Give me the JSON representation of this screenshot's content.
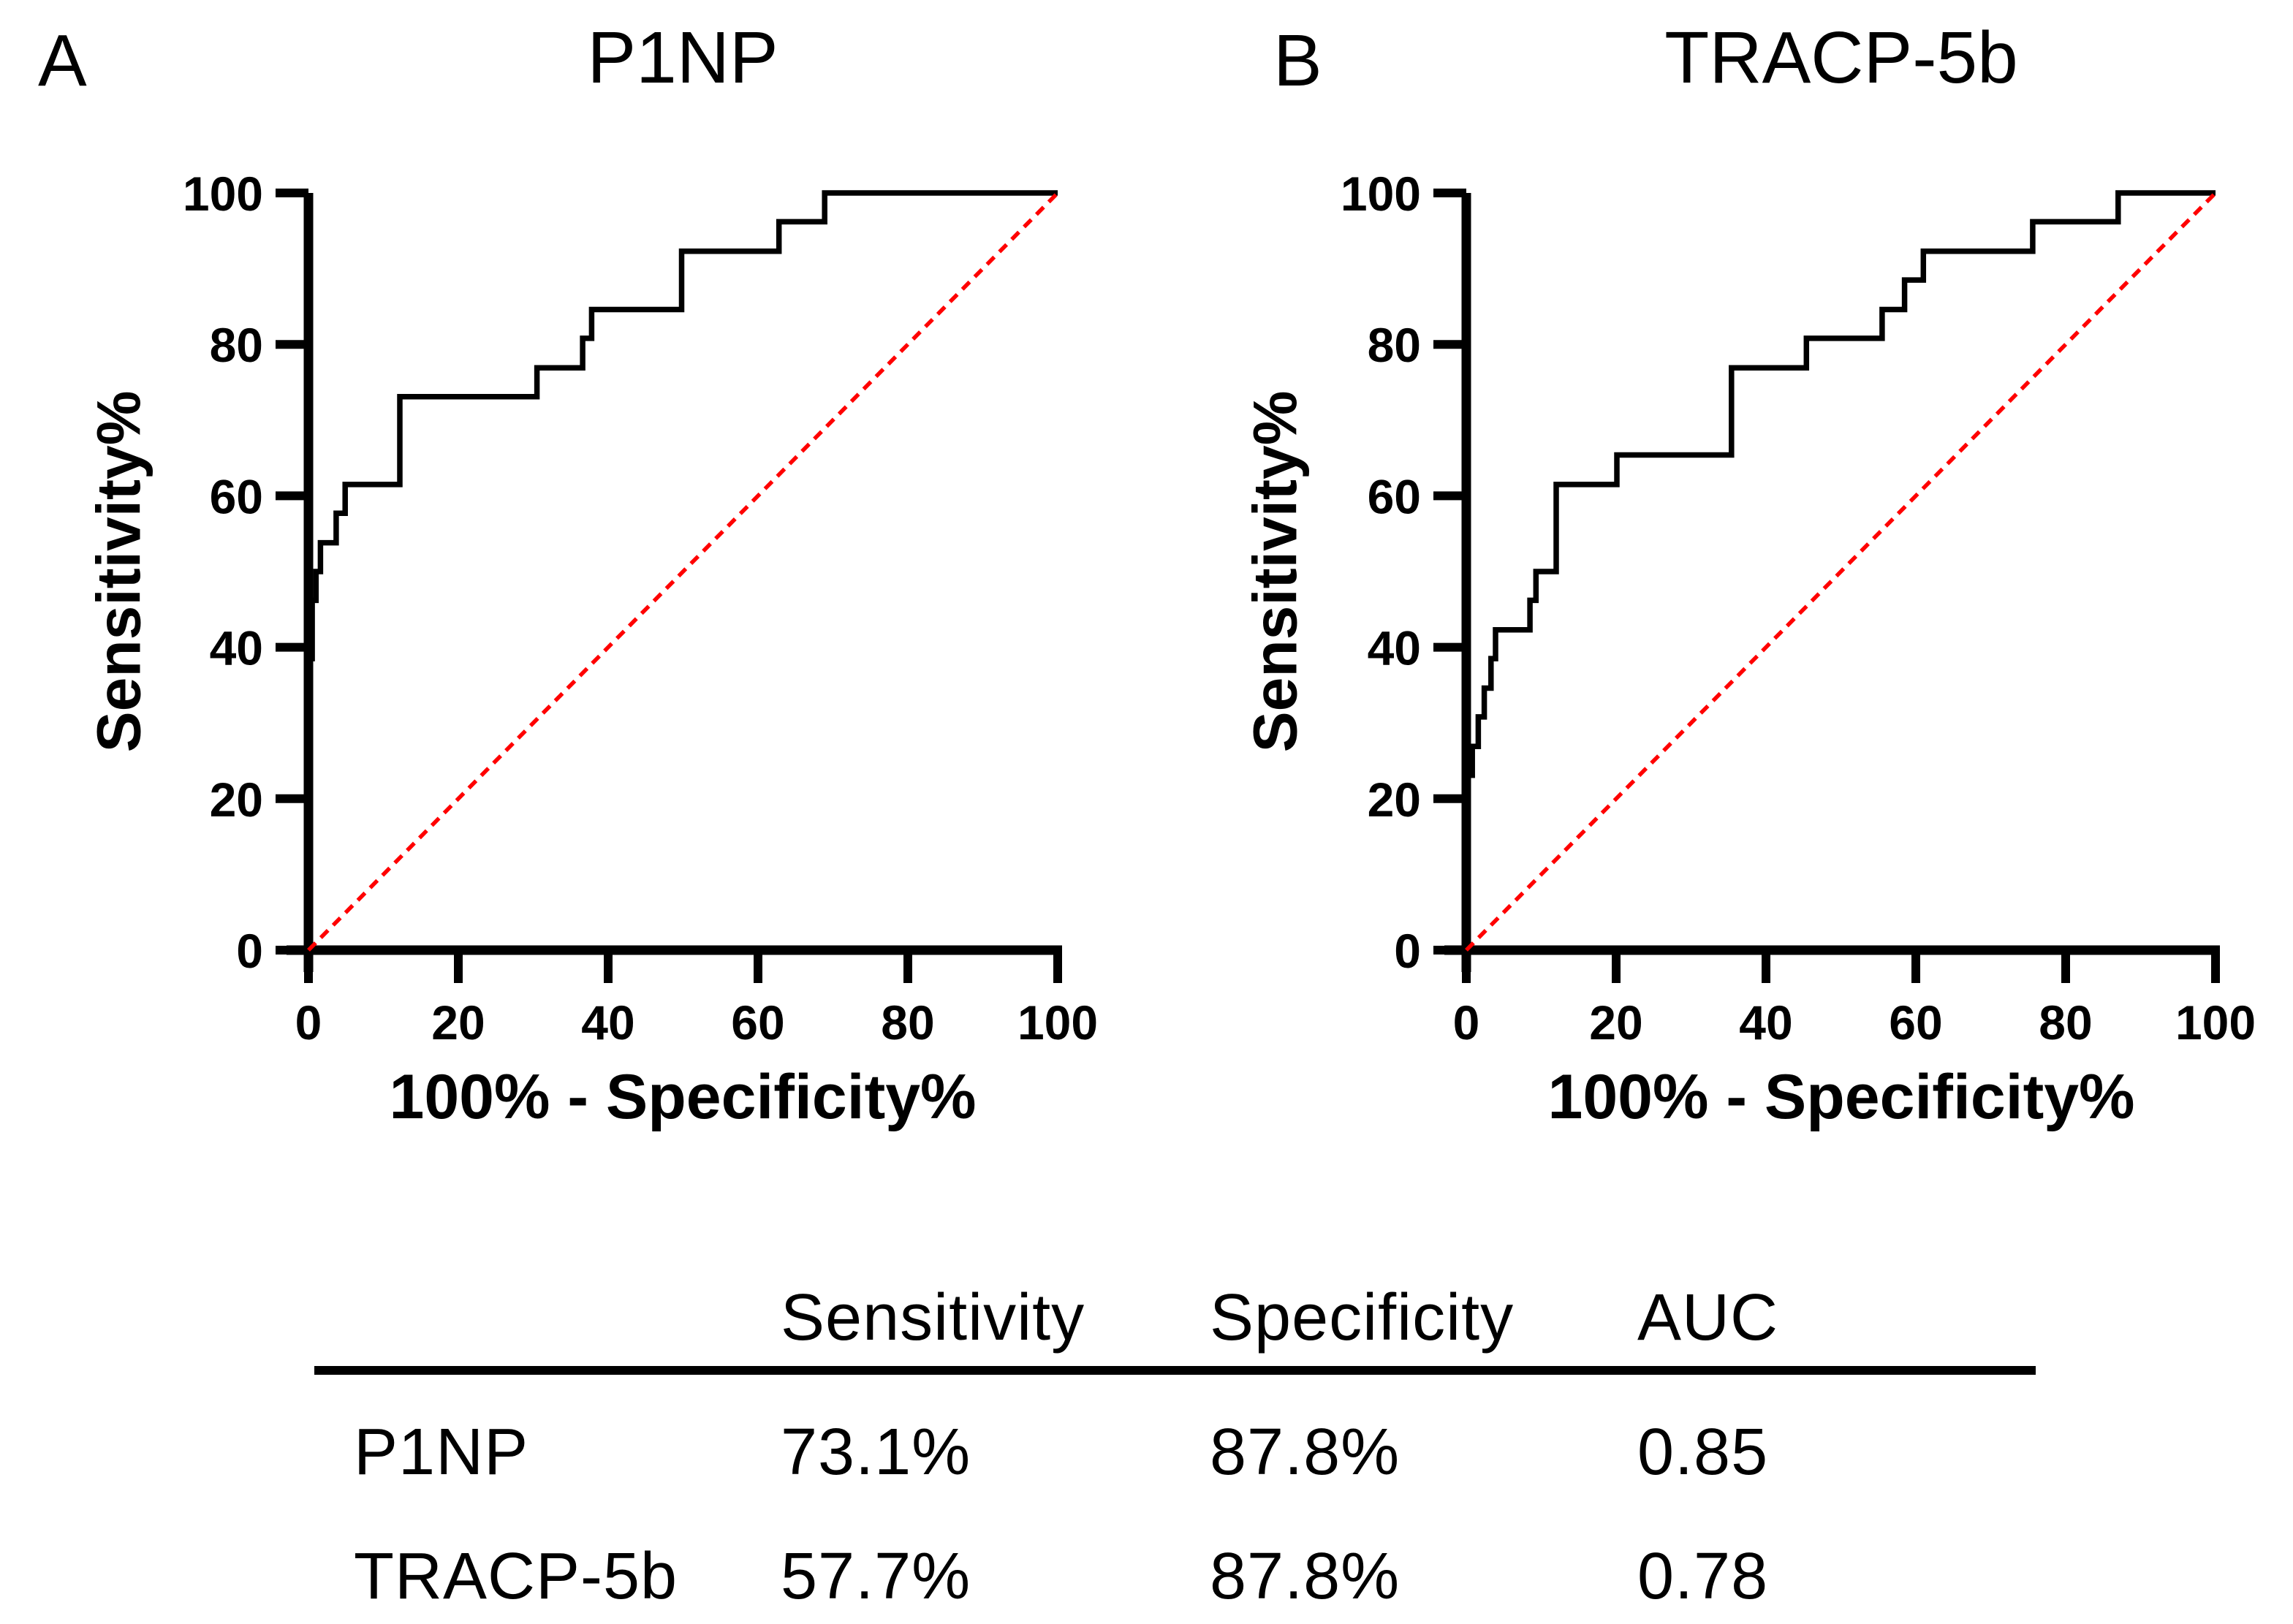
{
  "figure": {
    "panels": [
      {
        "letter": "A",
        "title": "P1NP"
      },
      {
        "letter": "B",
        "title": "TRACP-5b"
      }
    ],
    "background": "#FFFFFF"
  },
  "colors": {
    "curve": "#000000",
    "diagonal": "#FF0000",
    "text": "#000000",
    "table_rule": "#000000"
  },
  "chart_data": [
    {
      "type": "line",
      "panel": "A",
      "title": "P1NP",
      "xlabel": "100% - Specificity%",
      "ylabel": "Sensitivity%",
      "xlim": [
        0,
        100
      ],
      "ylim": [
        0,
        100
      ],
      "xticks": [
        0,
        20,
        40,
        60,
        80,
        100
      ],
      "yticks": [
        0,
        20,
        40,
        60,
        80,
        100
      ],
      "grid": false,
      "legend": "none",
      "series": [
        {
          "name": "ROC curve (P1NP)",
          "color": "#000000",
          "dashed": false,
          "points": [
            [
              0,
              0
            ],
            [
              0,
              38.5
            ],
            [
              0.5,
              38.5
            ],
            [
              0.5,
              46.2
            ],
            [
              1.0,
              46.2
            ],
            [
              1.0,
              50
            ],
            [
              1.6,
              50
            ],
            [
              1.6,
              53.8
            ],
            [
              2.4,
              53.8
            ],
            [
              3.7,
              53.8
            ],
            [
              3.7,
              57.7
            ],
            [
              4.9,
              57.7
            ],
            [
              4.9,
              61.5
            ],
            [
              12.2,
              61.5
            ],
            [
              12.2,
              73.1
            ],
            [
              30.5,
              73.1
            ],
            [
              30.5,
              76.9
            ],
            [
              36.6,
              76.9
            ],
            [
              36.6,
              80.8
            ],
            [
              37.8,
              80.8
            ],
            [
              37.8,
              84.6
            ],
            [
              49.8,
              84.6
            ],
            [
              49.8,
              92.3
            ],
            [
              62.8,
              92.3
            ],
            [
              62.8,
              96.2
            ],
            [
              68.9,
              96.2
            ],
            [
              68.9,
              100
            ],
            [
              100,
              100
            ]
          ]
        },
        {
          "name": "chance diagonal",
          "color": "#FF0000",
          "dashed": true,
          "points": [
            [
              0,
              0
            ],
            [
              100,
              100
            ]
          ]
        }
      ]
    },
    {
      "type": "line",
      "panel": "B",
      "title": "TRACP-5b",
      "xlabel": "100% - Specificity%",
      "ylabel": "Sensitivity%",
      "xlim": [
        0,
        100
      ],
      "ylim": [
        0,
        100
      ],
      "xticks": [
        0,
        20,
        40,
        60,
        80,
        100
      ],
      "yticks": [
        0,
        20,
        40,
        60,
        80,
        100
      ],
      "grid": false,
      "legend": "none",
      "series": [
        {
          "name": "ROC curve (TRACP-5b)",
          "color": "#000000",
          "dashed": false,
          "points": [
            [
              0,
              0
            ],
            [
              0,
              23.1
            ],
            [
              0.8,
              23.1
            ],
            [
              0.8,
              26.9
            ],
            [
              1.6,
              26.9
            ],
            [
              1.6,
              30.8
            ],
            [
              2.4,
              30.8
            ],
            [
              2.4,
              34.6
            ],
            [
              3.3,
              34.6
            ],
            [
              3.3,
              38.5
            ],
            [
              3.9,
              38.5
            ],
            [
              3.9,
              42.3
            ],
            [
              8.5,
              42.3
            ],
            [
              8.5,
              46.2
            ],
            [
              9.3,
              46.2
            ],
            [
              9.3,
              50
            ],
            [
              12,
              50
            ],
            [
              12,
              61.5
            ],
            [
              20.1,
              61.5
            ],
            [
              20.1,
              65.4
            ],
            [
              35.4,
              65.4
            ],
            [
              35.4,
              76.9
            ],
            [
              45.4,
              76.9
            ],
            [
              45.4,
              80.8
            ],
            [
              55.5,
              80.8
            ],
            [
              55.5,
              84.6
            ],
            [
              58.5,
              84.6
            ],
            [
              58.5,
              88.5
            ],
            [
              61,
              88.5
            ],
            [
              61,
              92.3
            ],
            [
              75.6,
              92.3
            ],
            [
              75.6,
              96.2
            ],
            [
              87,
              96.2
            ],
            [
              87,
              100
            ],
            [
              100,
              100
            ]
          ]
        },
        {
          "name": "chance diagonal",
          "color": "#FF0000",
          "dashed": true,
          "points": [
            [
              0,
              0
            ],
            [
              100,
              100
            ]
          ]
        }
      ]
    }
  ],
  "table": {
    "headers": [
      "",
      "Sensitivity",
      "Specificity",
      "AUC"
    ],
    "rows": [
      [
        "P1NP",
        "73.1%",
        "87.8%",
        "0.85"
      ],
      [
        "TRACP-5b",
        "57.7%",
        "87.8%",
        "0.78"
      ]
    ]
  }
}
